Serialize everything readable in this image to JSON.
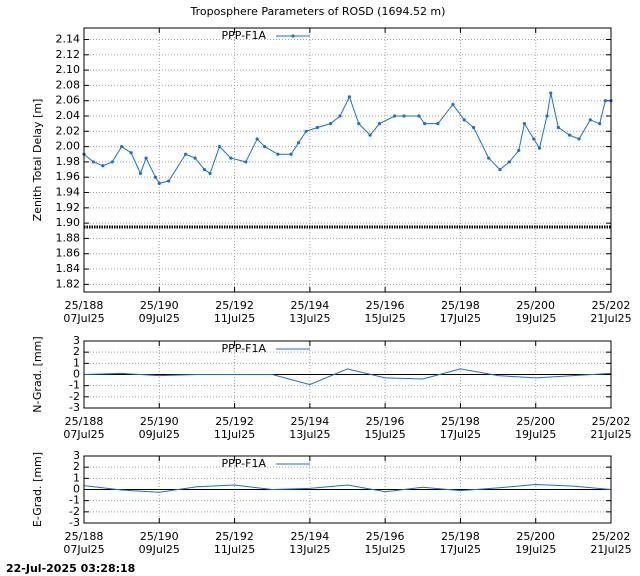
{
  "chart_data": [
    {
      "type": "line",
      "title": "Troposphere Parameters of ROSD (1694.52 m)",
      "ylabel": "Zenith Total Delay [m]",
      "x": [
        188.0,
        188.25,
        188.5,
        188.75,
        189.0,
        189.25,
        189.5,
        189.65,
        189.9,
        190.0,
        190.25,
        190.7,
        190.95,
        191.2,
        191.35,
        191.6,
        191.9,
        192.3,
        192.6,
        192.8,
        193.15,
        193.5,
        193.7,
        193.9,
        194.2,
        194.55,
        194.8,
        195.05,
        195.3,
        195.6,
        195.85,
        196.25,
        196.5,
        196.9,
        197.05,
        197.4,
        197.8,
        198.1,
        198.35,
        198.75,
        199.05,
        199.3,
        199.55,
        199.7,
        199.95,
        200.1,
        200.3,
        200.4,
        200.6,
        200.9,
        201.15,
        201.45,
        201.7,
        201.85,
        202.0
      ],
      "series": [
        {
          "name": "PPP-F1A",
          "color": "#1a6fd8",
          "values": [
            1.99,
            1.98,
            1.975,
            1.98,
            2.0,
            1.992,
            1.965,
            1.985,
            1.96,
            1.952,
            1.955,
            1.99,
            1.985,
            1.97,
            1.965,
            2.0,
            1.985,
            1.98,
            2.01,
            2.0,
            1.99,
            1.99,
            2.005,
            2.02,
            2.025,
            2.03,
            2.04,
            2.065,
            2.03,
            2.015,
            2.03,
            2.04,
            2.04,
            2.04,
            2.03,
            2.03,
            2.055,
            2.035,
            2.025,
            1.985,
            1.97,
            1.98,
            1.995,
            2.03,
            2.01,
            1.998,
            2.04,
            2.07,
            2.025,
            2.015,
            2.01,
            2.035,
            2.03,
            2.06,
            2.06
          ]
        }
      ],
      "reference_line": {
        "value": 1.895,
        "color": "#000000"
      },
      "xlim": [
        188,
        202
      ],
      "xticks": [
        {
          "value": 188,
          "label": "25/188",
          "date": "07Jul25"
        },
        {
          "value": 190,
          "label": "25/190",
          "date": "09Jul25"
        },
        {
          "value": 192,
          "label": "25/192",
          "date": "11Jul25"
        },
        {
          "value": 194,
          "label": "25/194",
          "date": "13Jul25"
        },
        {
          "value": 196,
          "label": "25/196",
          "date": "15Jul25"
        },
        {
          "value": 198,
          "label": "25/198",
          "date": "17Jul25"
        },
        {
          "value": 200,
          "label": "25/200",
          "date": "19Jul25"
        },
        {
          "value": 202,
          "label": "25/202",
          "date": "21Jul25"
        }
      ],
      "ylim": [
        1.81,
        2.155
      ],
      "yticks": [
        1.82,
        1.84,
        1.86,
        1.88,
        {
          "value": 1.9,
          "label": "1.90"
        },
        1.92,
        1.94,
        1.96,
        1.98,
        {
          "value": 2.0,
          "label": "2.00"
        },
        2.02,
        2.04,
        2.06,
        2.08,
        {
          "value": 2.1,
          "label": "2.10"
        },
        2.12,
        2.14
      ],
      "grid": true
    },
    {
      "type": "line",
      "ylabel": "N-Grad. [mm]",
      "x": [
        188,
        189,
        190,
        191,
        192,
        193,
        194,
        195,
        196,
        197,
        198,
        199,
        200,
        201,
        202
      ],
      "series": [
        {
          "name": "PPP-F1A",
          "color": "#1a6fd8",
          "values": [
            0,
            0.1,
            -0.1,
            0,
            0,
            0,
            -0.9,
            0.5,
            -0.3,
            -0.4,
            0.5,
            -0.1,
            -0.3,
            -0.1,
            0.1
          ]
        }
      ],
      "xlim": [
        188,
        202
      ],
      "xticks": [
        {
          "value": 188,
          "label": "25/188",
          "date": "07Jul25"
        },
        {
          "value": 190,
          "label": "25/190",
          "date": "09Jul25"
        },
        {
          "value": 192,
          "label": "25/192",
          "date": "11Jul25"
        },
        {
          "value": 194,
          "label": "25/194",
          "date": "13Jul25"
        },
        {
          "value": 196,
          "label": "25/196",
          "date": "15Jul25"
        },
        {
          "value": 198,
          "label": "25/198",
          "date": "17Jul25"
        },
        {
          "value": 200,
          "label": "25/200",
          "date": "19Jul25"
        },
        {
          "value": 202,
          "label": "25/202",
          "date": "21Jul25"
        }
      ],
      "ylim": [
        -3,
        3
      ],
      "yticks": [
        -3,
        -2,
        -1,
        0,
        1,
        2,
        3
      ],
      "grid": true
    },
    {
      "type": "line",
      "ylabel": "E-Grad. [mm]",
      "x": [
        188,
        189,
        190,
        191,
        192,
        193,
        194,
        195,
        196,
        197,
        198,
        199,
        200,
        201,
        202
      ],
      "series": [
        {
          "name": "PPP-F1A",
          "color": "#1a6fd8",
          "values": [
            0.35,
            -0.05,
            -0.25,
            0.25,
            0.4,
            0,
            0.1,
            0.4,
            -0.2,
            0.2,
            -0.1,
            0.15,
            0.45,
            0.3,
            0
          ]
        }
      ],
      "xlim": [
        188,
        202
      ],
      "xticks": [
        {
          "value": 188,
          "label": "25/188",
          "date": "07Jul25"
        },
        {
          "value": 190,
          "label": "25/190",
          "date": "09Jul25"
        },
        {
          "value": 192,
          "label": "25/192",
          "date": "11Jul25"
        },
        {
          "value": 194,
          "label": "25/194",
          "date": "13Jul25"
        },
        {
          "value": 196,
          "label": "25/196",
          "date": "15Jul25"
        },
        {
          "value": 198,
          "label": "25/198",
          "date": "17Jul25"
        },
        {
          "value": 200,
          "label": "25/200",
          "date": "19Jul25"
        },
        {
          "value": 202,
          "label": "25/202",
          "date": "21Jul25"
        }
      ],
      "ylim": [
        -3,
        3
      ],
      "yticks": [
        -3,
        -2,
        -1,
        0,
        1,
        2,
        3
      ],
      "grid": true
    }
  ],
  "timestamp": "22-Jul-2025 03:28:18"
}
